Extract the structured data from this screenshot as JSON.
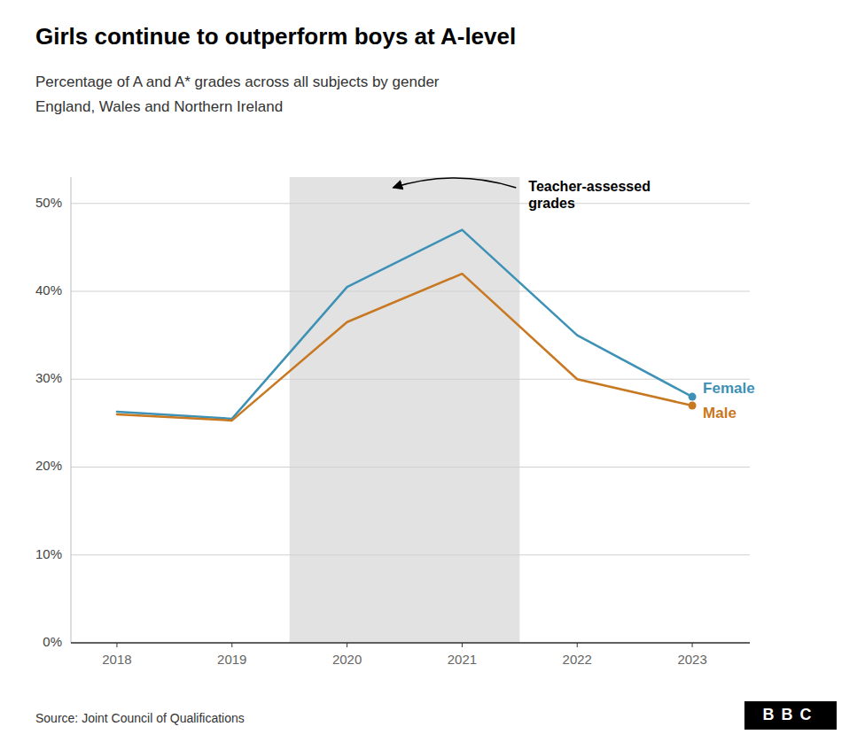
{
  "chart_data": {
    "type": "line",
    "title": "Girls continue to outperform boys at A-level",
    "subtitle": [
      "Percentage of A and A* grades across all subjects by gender",
      "England, Wales and Northern Ireland"
    ],
    "source": "Source: Joint Council of Qualifications",
    "logo": "BBC",
    "x": [
      2018,
      2019,
      2020,
      2021,
      2022,
      2023
    ],
    "series": [
      {
        "name": "Female",
        "color": "#3d91b5",
        "values": [
          26.3,
          25.5,
          40.5,
          47.0,
          35.0,
          28.0
        ]
      },
      {
        "name": "Male",
        "color": "#c87820",
        "values": [
          26.0,
          25.3,
          36.5,
          42.0,
          30.0,
          27.0
        ]
      }
    ],
    "shade": {
      "start": 2019.5,
      "end": 2021.5,
      "color": "#e2e2e2"
    },
    "annotations": [
      {
        "text": "Teacher-assessed\ngrades"
      }
    ],
    "xlim": [
      2017.6,
      2023.5
    ],
    "xticks": [
      2018,
      2019,
      2020,
      2021,
      2022,
      2023
    ],
    "ylim": [
      0,
      53
    ],
    "yticks": [
      {
        "value": 0,
        "label": "0%"
      },
      {
        "value": 10,
        "label": "10%"
      },
      {
        "value": 20,
        "label": "20%"
      },
      {
        "value": 30,
        "label": "30%"
      },
      {
        "value": 40,
        "label": "40%"
      },
      {
        "value": 50,
        "label": "50%"
      }
    ],
    "grid": true
  }
}
